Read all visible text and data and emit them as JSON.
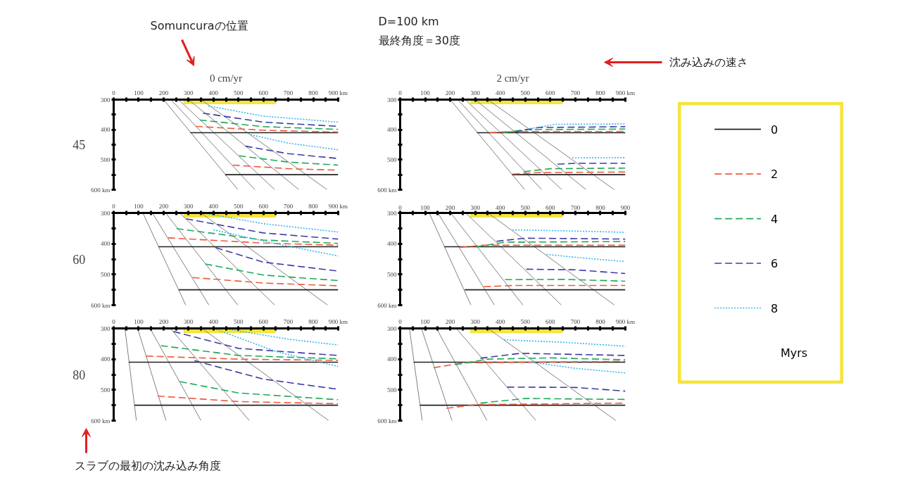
{
  "chart_data": [
    {
      "type": "line",
      "title": "0 cm/yr",
      "ylabel": "45",
      "legend": "right",
      "legend_title": "Myrs",
      "grid": false,
      "annotations": [
        "Somuncuraの位置",
        "D=100 km",
        "最終角度＝30度",
        "沈み込みの速さ",
        "スラブの最初の沈み込み角度"
      ],
      "xlim": [
        0,
        900
      ],
      "ylim": [
        600,
        300
      ],
      "xticks": [
        0,
        {
          "value": 50,
          "label": null
        },
        100,
        {
          "value": 150,
          "label": null
        },
        200,
        {
          "value": 250,
          "label": null
        },
        300,
        {
          "value": 350,
          "label": null
        },
        400,
        {
          "value": 450,
          "label": null
        },
        500,
        {
          "value": 550,
          "label": null
        },
        600,
        {
          "value": 650,
          "label": null
        },
        700,
        {
          "value": 750,
          "label": null
        },
        800,
        {
          "value": 850,
          "label": null
        },
        {
          "value": 900,
          "label": "900 km"
        }
      ],
      "yticks": [
        300,
        {
          "value": 350,
          "label": null
        },
        400,
        {
          "value": 450,
          "label": null
        },
        500,
        {
          "value": 550,
          "label": null
        },
        {
          "value": 600,
          "label": "600 km"
        }
      ],
      "bands": [
        {
          "axis": "x",
          "from": 280,
          "to": 650,
          "color": "#f5e43c"
        }
      ],
      "series": [
        {
          "color": "#808080",
          "line_style": "solid",
          "x": [
            200,
            498
          ],
          "values": [
            300,
            600
          ]
        },
        {
          "color": "#808080",
          "line_style": "solid",
          "x": [
            230,
            566
          ],
          "values": [
            300,
            600
          ]
        },
        {
          "color": "#808080",
          "line_style": "solid",
          "x": [
            260,
            646
          ],
          "values": [
            300,
            600
          ]
        },
        {
          "color": "#808080",
          "line_style": "solid",
          "x": [
            300,
            743
          ],
          "values": [
            300,
            600
          ]
        },
        {
          "color": "#808080",
          "line_style": "solid",
          "x": [
            350,
            856
          ],
          "values": [
            300,
            600
          ]
        },
        {
          "name": "0",
          "color": "#222222",
          "line_style": "solid",
          "x": [
            307,
            900
          ],
          "values": [
            410,
            410
          ]
        },
        {
          "color": "#222222",
          "line_style": "solid",
          "x": [
            447,
            900
          ],
          "values": [
            550,
            550
          ]
        },
        {
          "name": "2",
          "color": "#f05a3c",
          "line_style": "dashed",
          "x": [
            329,
            600,
            900
          ],
          "values": [
            389,
            402,
            408
          ]
        },
        {
          "color": "#f05a3c",
          "line_style": "dashed",
          "x": [
            477,
            700,
            900
          ],
          "values": [
            518,
            530,
            535
          ]
        },
        {
          "name": "4",
          "color": "#22a85a",
          "line_style": "dashed",
          "x": [
            345,
            600,
            900
          ],
          "values": [
            368,
            390,
            399
          ]
        },
        {
          "color": "#22a85a",
          "line_style": "dashed",
          "x": [
            502,
            700,
            900
          ],
          "values": [
            487,
            508,
            518
          ]
        },
        {
          "name": "6",
          "color": "#3c3ca5",
          "line_style": "dashed",
          "x": [
            358,
            600,
            900
          ],
          "values": [
            345,
            375,
            389
          ]
        },
        {
          "color": "#3c3ca5",
          "line_style": "dashed",
          "x": [
            528,
            700,
            900
          ],
          "values": [
            455,
            480,
            496
          ]
        },
        {
          "name": "8",
          "color": "#35b5ef",
          "line_style": "dotted",
          "x": [
            379,
            600,
            900
          ],
          "values": [
            321,
            355,
            375
          ]
        },
        {
          "color": "#35b5ef",
          "line_style": "dotted",
          "x": [
            549,
            700,
            900
          ],
          "values": [
            417,
            445,
            467
          ]
        }
      ]
    },
    {
      "type": "line",
      "title": "2 cm/yr",
      "grid": false,
      "xlim": [
        0,
        900
      ],
      "ylim": [
        600,
        300
      ],
      "xticks": [
        0,
        {
          "value": 50,
          "label": null
        },
        100,
        {
          "value": 150,
          "label": null
        },
        200,
        {
          "value": 250,
          "label": null
        },
        300,
        {
          "value": 350,
          "label": null
        },
        400,
        {
          "value": 450,
          "label": null
        },
        500,
        {
          "value": 550,
          "label": null
        },
        600,
        {
          "value": 650,
          "label": null
        },
        700,
        {
          "value": 750,
          "label": null
        },
        800,
        {
          "value": 850,
          "label": null
        },
        {
          "value": 900,
          "label": "900 km"
        }
      ],
      "yticks": [
        300,
        {
          "value": 350,
          "label": null
        },
        400,
        {
          "value": 450,
          "label": null
        },
        500,
        {
          "value": 550,
          "label": null
        },
        {
          "value": 600,
          "label": "600 km"
        }
      ],
      "bands": [
        {
          "axis": "x",
          "from": 280,
          "to": 650,
          "color": "#f5e43c"
        }
      ],
      "series": [
        {
          "color": "#808080",
          "line_style": "solid",
          "x": [
            200,
            498
          ],
          "values": [
            300,
            600
          ]
        },
        {
          "color": "#808080",
          "line_style": "solid",
          "x": [
            230,
            566
          ],
          "values": [
            300,
            600
          ]
        },
        {
          "color": "#808080",
          "line_style": "solid",
          "x": [
            260,
            646
          ],
          "values": [
            300,
            600
          ]
        },
        {
          "color": "#808080",
          "line_style": "solid",
          "x": [
            300,
            743
          ],
          "values": [
            300,
            600
          ]
        },
        {
          "color": "#808080",
          "line_style": "solid",
          "x": [
            350,
            856
          ],
          "values": [
            300,
            600
          ]
        },
        {
          "color": "#222222",
          "line_style": "solid",
          "x": [
            307,
            900
          ],
          "values": [
            410,
            410
          ]
        },
        {
          "color": "#222222",
          "line_style": "solid",
          "x": [
            447,
            900
          ],
          "values": [
            550,
            550
          ]
        },
        {
          "color": "#f05a3c",
          "line_style": "dashed",
          "x": [
            358,
            450,
            900
          ],
          "values": [
            410,
            406,
            406
          ]
        },
        {
          "color": "#f05a3c",
          "line_style": "dashed",
          "x": [
            450,
            550,
            900
          ],
          "values": [
            548,
            543,
            541
          ]
        },
        {
          "color": "#22a85a",
          "line_style": "dashed",
          "x": [
            413,
            500,
            900
          ],
          "values": [
            410,
            400,
            398
          ]
        },
        {
          "color": "#22a85a",
          "line_style": "dashed",
          "x": [
            494,
            600,
            900
          ],
          "values": [
            540,
            530,
            528
          ]
        },
        {
          "color": "#3c3ca5",
          "line_style": "dashed",
          "x": [
            460,
            550,
            900
          ],
          "values": [
            408,
            393,
            390
          ]
        },
        {
          "color": "#3c3ca5",
          "line_style": "dashed",
          "x": [
            629,
            700,
            900
          ],
          "values": [
            515,
            512,
            512
          ]
        },
        {
          "color": "#35b5ef",
          "line_style": "dotted",
          "x": [
            510,
            620,
            900
          ],
          "values": [
            398,
            382,
            381
          ]
        },
        {
          "color": "#35b5ef",
          "line_style": "dotted",
          "x": [
            688,
            900
          ],
          "values": [
            494,
            493
          ]
        }
      ]
    },
    {
      "type": "line",
      "ylabel": "60",
      "grid": false,
      "xlim": [
        0,
        900
      ],
      "ylim": [
        600,
        300
      ],
      "xticks": [
        0,
        {
          "value": 50,
          "label": null
        },
        100,
        {
          "value": 150,
          "label": null
        },
        200,
        {
          "value": 250,
          "label": null
        },
        300,
        {
          "value": 350,
          "label": null
        },
        400,
        {
          "value": 450,
          "label": null
        },
        500,
        {
          "value": 550,
          "label": null
        },
        600,
        {
          "value": 650,
          "label": null
        },
        700,
        {
          "value": 750,
          "label": null
        },
        800,
        {
          "value": 850,
          "label": null
        },
        {
          "value": 900,
          "label": "900 km"
        }
      ],
      "yticks": [
        300,
        {
          "value": 350,
          "label": null
        },
        400,
        {
          "value": 450,
          "label": null
        },
        500,
        {
          "value": 550,
          "label": null
        },
        {
          "value": 600,
          "label": "600 km"
        }
      ],
      "bands": [
        {
          "axis": "x",
          "from": 280,
          "to": 650,
          "color": "#f5e43c"
        }
      ],
      "series": [
        {
          "color": "#808080",
          "line_style": "solid",
          "x": [
            117,
            289
          ],
          "values": [
            300,
            600
          ]
        },
        {
          "color": "#808080",
          "line_style": "solid",
          "x": [
            155,
            382
          ],
          "values": [
            300,
            600
          ]
        },
        {
          "color": "#808080",
          "line_style": "solid",
          "x": [
            208,
            498
          ],
          "values": [
            300,
            600
          ]
        },
        {
          "color": "#808080",
          "line_style": "solid",
          "x": [
            265,
            646
          ],
          "values": [
            300,
            600
          ]
        },
        {
          "color": "#808080",
          "line_style": "solid",
          "x": [
            350,
            858
          ],
          "values": [
            300,
            600
          ]
        },
        {
          "color": "#222222",
          "line_style": "solid",
          "x": [
            180,
            900
          ],
          "values": [
            410,
            410
          ]
        },
        {
          "color": "#222222",
          "line_style": "solid",
          "x": [
            261,
            900
          ],
          "values": [
            550,
            550
          ]
        },
        {
          "color": "#f05a3c",
          "line_style": "dashed",
          "x": [
            218,
            600,
            900
          ],
          "values": [
            381,
            398,
            405
          ]
        },
        {
          "color": "#f05a3c",
          "line_style": "dashed",
          "x": [
            316,
            600,
            900
          ],
          "values": [
            510,
            528,
            537
          ]
        },
        {
          "color": "#22a85a",
          "line_style": "dashed",
          "x": [
            252,
            600,
            900
          ],
          "values": [
            351,
            388,
            399
          ]
        },
        {
          "color": "#22a85a",
          "line_style": "dashed",
          "x": [
            367,
            600,
            900
          ],
          "values": [
            466,
            502,
            520
          ]
        },
        {
          "color": "#3c3ca5",
          "line_style": "dashed",
          "x": [
            290,
            600,
            900
          ],
          "values": [
            319,
            365,
            385
          ]
        },
        {
          "color": "#3c3ca5",
          "line_style": "dashed",
          "x": [
            409,
            600,
            900
          ],
          "values": [
            413,
            460,
            489
          ]
        },
        {
          "color": "#35b5ef",
          "line_style": "dotted",
          "x": [
            358,
            600,
            900
          ],
          "values": [
            300,
            335,
            362
          ]
        },
        {
          "color": "#35b5ef",
          "line_style": "dotted",
          "x": [
            400,
            650,
            900
          ],
          "values": [
            355,
            400,
            440
          ]
        }
      ]
    },
    {
      "type": "line",
      "grid": false,
      "xlim": [
        0,
        900
      ],
      "ylim": [
        600,
        300
      ],
      "xticks": [
        0,
        {
          "value": 50,
          "label": null
        },
        100,
        {
          "value": 150,
          "label": null
        },
        200,
        {
          "value": 250,
          "label": null
        },
        300,
        {
          "value": 350,
          "label": null
        },
        400,
        {
          "value": 450,
          "label": null
        },
        500,
        {
          "value": 550,
          "label": null
        },
        600,
        {
          "value": 650,
          "label": null
        },
        700,
        {
          "value": 750,
          "label": null
        },
        800,
        {
          "value": 850,
          "label": null
        },
        900
      ],
      "yticks": [
        300,
        {
          "value": 350,
          "label": null
        },
        400,
        {
          "value": 450,
          "label": null
        },
        500,
        {
          "value": 550,
          "label": null
        },
        {
          "value": 600,
          "label": "600 km"
        }
      ],
      "bands": [
        {
          "axis": "x",
          "from": 280,
          "to": 650,
          "color": "#f5e43c"
        }
      ],
      "series": [
        {
          "color": "#808080",
          "line_style": "solid",
          "x": [
            116,
            283
          ],
          "values": [
            300,
            600
          ]
        },
        {
          "color": "#808080",
          "line_style": "solid",
          "x": [
            151,
            377
          ],
          "values": [
            300,
            600
          ]
        },
        {
          "color": "#808080",
          "line_style": "solid",
          "x": [
            202,
            491
          ],
          "values": [
            300,
            600
          ]
        },
        {
          "color": "#808080",
          "line_style": "solid",
          "x": [
            262,
            645
          ],
          "values": [
            300,
            600
          ]
        },
        {
          "color": "#808080",
          "line_style": "solid",
          "x": [
            351,
            857
          ],
          "values": [
            300,
            600
          ]
        },
        {
          "color": "#222222",
          "line_style": "solid",
          "x": [
            177,
            900
          ],
          "values": [
            410,
            410
          ]
        },
        {
          "color": "#222222",
          "line_style": "solid",
          "x": [
            258,
            900
          ],
          "values": [
            550,
            550
          ]
        },
        {
          "color": "#f05a3c",
          "line_style": "dashed",
          "x": [
            240,
            330,
            900
          ],
          "values": [
            412,
            405,
            405
          ]
        },
        {
          "color": "#f05a3c",
          "line_style": "dashed",
          "x": [
            334,
            450,
            900
          ],
          "values": [
            540,
            536,
            536
          ]
        },
        {
          "color": "#22a85a",
          "line_style": "dashed",
          "x": [
            304,
            420,
            900
          ],
          "values": [
            410,
            395,
            393
          ]
        },
        {
          "color": "#22a85a",
          "line_style": "dashed",
          "x": [
            419,
            650,
            900
          ],
          "values": [
            517,
            516,
            522
          ]
        },
        {
          "color": "#3c3ca5",
          "line_style": "dashed",
          "x": [
            385,
            500,
            900
          ],
          "values": [
            392,
            382,
            385
          ]
        },
        {
          "color": "#3c3ca5",
          "line_style": "dashed",
          "x": [
            504,
            700,
            900
          ],
          "values": [
            483,
            485,
            497
          ]
        },
        {
          "color": "#35b5ef",
          "line_style": "dotted",
          "x": [
            449,
            650,
            900
          ],
          "values": [
            355,
            358,
            363
          ]
        },
        {
          "color": "#35b5ef",
          "line_style": "dotted",
          "x": [
            585,
            750,
            900
          ],
          "values": [
            435,
            448,
            458
          ]
        }
      ]
    },
    {
      "type": "line",
      "ylabel": "80",
      "grid": false,
      "xlim": [
        0,
        900
      ],
      "ylim": [
        600,
        300
      ],
      "xticks": [
        0,
        {
          "value": 50,
          "label": null
        },
        100,
        {
          "value": 150,
          "label": null
        },
        200,
        {
          "value": 250,
          "label": null
        },
        300,
        {
          "value": 350,
          "label": null
        },
        400,
        {
          "value": 450,
          "label": null
        },
        500,
        {
          "value": 550,
          "label": null
        },
        600,
        {
          "value": 650,
          "label": null
        },
        700,
        {
          "value": 750,
          "label": null
        },
        800,
        {
          "value": 850,
          "label": null
        },
        {
          "value": 900,
          "label": "900 km"
        }
      ],
      "yticks": [
        300,
        {
          "value": 350,
          "label": null
        },
        400,
        {
          "value": 450,
          "label": null
        },
        500,
        {
          "value": 550,
          "label": null
        },
        {
          "value": 600,
          "label": "600 km"
        }
      ],
      "bands": [
        {
          "axis": "x",
          "from": 280,
          "to": 650,
          "color": "#f5e43c"
        }
      ],
      "series": [
        {
          "color": "#808080",
          "line_style": "solid",
          "x": [
            45,
            91
          ],
          "values": [
            300,
            600
          ]
        },
        {
          "color": "#808080",
          "line_style": "solid",
          "x": [
            96,
            210
          ],
          "values": [
            300,
            600
          ]
        },
        {
          "color": "#808080",
          "line_style": "solid",
          "x": [
            146,
            350
          ],
          "values": [
            300,
            600
          ]
        },
        {
          "color": "#808080",
          "line_style": "solid",
          "x": [
            227,
            544
          ],
          "values": [
            300,
            600
          ]
        },
        {
          "color": "#808080",
          "line_style": "solid",
          "x": [
            354,
            862
          ],
          "values": [
            300,
            600
          ]
        },
        {
          "color": "#222222",
          "line_style": "solid",
          "x": [
            60,
            900
          ],
          "values": [
            410,
            410
          ]
        },
        {
          "color": "#222222",
          "line_style": "solid",
          "x": [
            83,
            900
          ],
          "values": [
            550,
            550
          ]
        },
        {
          "color": "#f05a3c",
          "line_style": "dashed",
          "x": [
            130,
            500,
            900
          ],
          "values": [
            390,
            400,
            404
          ]
        },
        {
          "color": "#f05a3c",
          "line_style": "dashed",
          "x": [
            176,
            500,
            900
          ],
          "values": [
            520,
            538,
            545
          ]
        },
        {
          "color": "#22a85a",
          "line_style": "dashed",
          "x": [
            189,
            500,
            900
          ],
          "values": [
            356,
            388,
            399
          ]
        },
        {
          "color": "#22a85a",
          "line_style": "dashed",
          "x": [
            265,
            500,
            900
          ],
          "values": [
            473,
            510,
            532
          ]
        },
        {
          "color": "#3c3ca5",
          "line_style": "dashed",
          "x": [
            240,
            500,
            900
          ],
          "values": [
            310,
            365,
            388
          ]
        },
        {
          "color": "#3c3ca5",
          "line_style": "dashed",
          "x": [
            324,
            600,
            900
          ],
          "values": [
            405,
            465,
            498
          ]
        },
        {
          "color": "#35b5ef",
          "line_style": "dotted",
          "x": [
            440,
            700,
            900
          ],
          "values": [
            300,
            335,
            354
          ]
        },
        {
          "color": "#35b5ef",
          "line_style": "dotted",
          "x": [
            400,
            650,
            900
          ],
          "values": [
            300,
            375,
            424
          ]
        }
      ]
    },
    {
      "type": "line",
      "grid": false,
      "xlim": [
        0,
        900
      ],
      "ylim": [
        600,
        300
      ],
      "xticks": [
        0,
        {
          "value": 50,
          "label": null
        },
        100,
        {
          "value": 150,
          "label": null
        },
        200,
        {
          "value": 250,
          "label": null
        },
        300,
        {
          "value": 350,
          "label": null
        },
        400,
        {
          "value": 450,
          "label": null
        },
        500,
        {
          "value": 550,
          "label": null
        },
        600,
        {
          "value": 650,
          "label": null
        },
        700,
        {
          "value": 750,
          "label": null
        },
        800,
        {
          "value": 850,
          "label": null
        },
        {
          "value": 900,
          "label": "900 km"
        }
      ],
      "yticks": [
        300,
        {
          "value": 350,
          "label": null
        },
        400,
        {
          "value": 450,
          "label": null
        },
        500,
        {
          "value": 550,
          "label": null
        },
        {
          "value": 600,
          "label": "600 km"
        }
      ],
      "bands": [
        {
          "axis": "x",
          "from": 280,
          "to": 650,
          "color": "#f5e43c"
        }
      ],
      "series": [
        {
          "color": "#808080",
          "line_style": "solid",
          "x": [
            37,
            88
          ],
          "values": [
            300,
            600
          ]
        },
        {
          "color": "#808080",
          "line_style": "solid",
          "x": [
            85,
            207
          ],
          "values": [
            300,
            600
          ]
        },
        {
          "color": "#808080",
          "line_style": "solid",
          "x": [
            145,
            347
          ],
          "values": [
            300,
            600
          ]
        },
        {
          "color": "#808080",
          "line_style": "solid",
          "x": [
            224,
            543
          ],
          "values": [
            300,
            600
          ]
        },
        {
          "color": "#808080",
          "line_style": "solid",
          "x": [
            351,
            862
          ],
          "values": [
            300,
            600
          ]
        },
        {
          "color": "#222222",
          "line_style": "solid",
          "x": [
            54,
            900
          ],
          "values": [
            410,
            410
          ]
        },
        {
          "color": "#222222",
          "line_style": "solid",
          "x": [
            79,
            900
          ],
          "values": [
            550,
            550
          ]
        },
        {
          "color": "#f05a3c",
          "line_style": "dashed",
          "x": [
            134,
            250,
            900
          ],
          "values": [
            428,
            412,
            407
          ]
        },
        {
          "color": "#f05a3c",
          "line_style": "dashed",
          "x": [
            185,
            300,
            900
          ],
          "values": [
            560,
            548,
            543
          ]
        },
        {
          "color": "#22a85a",
          "line_style": "dashed",
          "x": [
            220,
            350,
            600,
            900
          ],
          "values": [
            418,
            400,
            396,
            402
          ]
        },
        {
          "color": "#22a85a",
          "line_style": "dashed",
          "x": [
            321,
            500,
            900
          ],
          "values": [
            543,
            528,
            531
          ]
        },
        {
          "color": "#3c3ca5",
          "line_style": "dashed",
          "x": [
            321,
            480,
            900
          ],
          "values": [
            397,
            381,
            388
          ]
        },
        {
          "color": "#3c3ca5",
          "line_style": "dashed",
          "x": [
            428,
            700,
            900
          ],
          "values": [
            491,
            492,
            504
          ]
        },
        {
          "color": "#35b5ef",
          "line_style": "dotted",
          "x": [
            415,
            650,
            900
          ],
          "values": [
            337,
            345,
            358
          ]
        },
        {
          "color": "#35b5ef",
          "line_style": "dotted",
          "x": [
            525,
            700,
            900
          ],
          "values": [
            410,
            430,
            445
          ]
        }
      ]
    }
  ]
}
